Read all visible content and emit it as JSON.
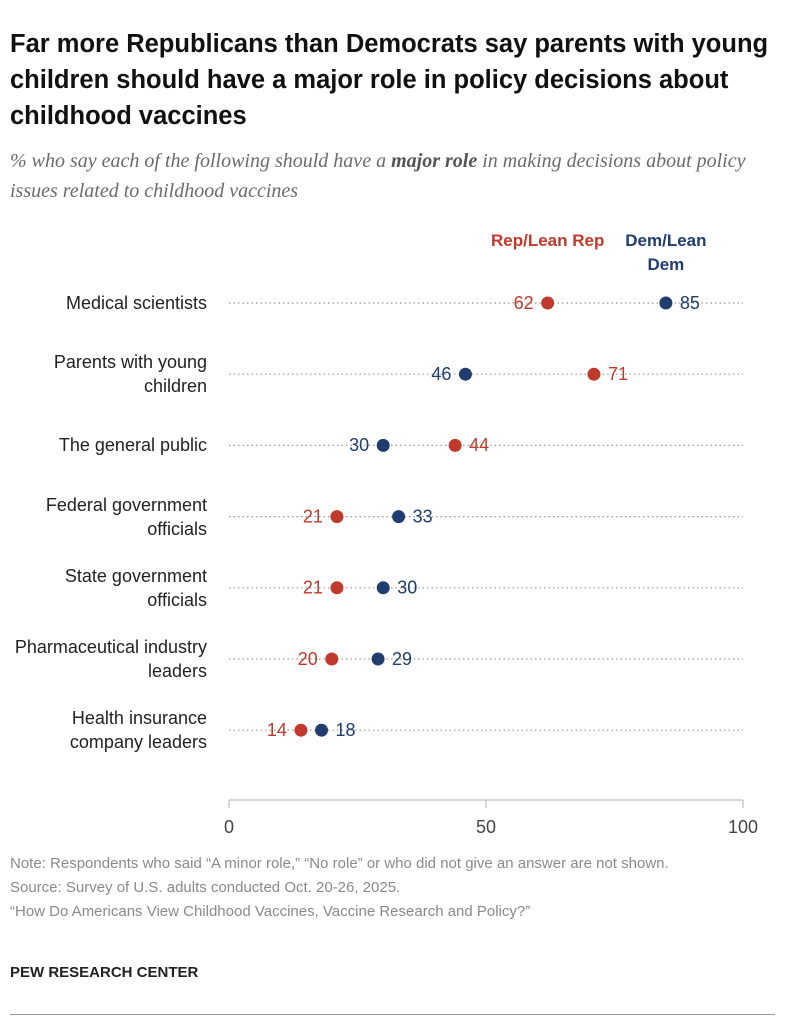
{
  "chart_data": {
    "type": "dot",
    "title": "Far more Republicans than Democrats say parents with young children should have a major role in policy decisions about childhood vaccines",
    "subtitle": [
      "% who say each of the following should have a",
      "major role",
      "in making decisions about policy issues related to childhood vaccines"
    ],
    "categories": [
      "Medical scientists",
      "Parents with young children",
      "The general public",
      "Federal government officials",
      "State government officials",
      "Pharmaceutical industry leaders",
      "Health insurance company leaders"
    ],
    "series": [
      {
        "name": "Rep/Lean Rep",
        "color": "#bf3a2b",
        "values": [
          62,
          71,
          44,
          21,
          21,
          20,
          14
        ]
      },
      {
        "name": "Dem/Lean Dem",
        "color": "#1f3d6e",
        "values": [
          85,
          46,
          30,
          33,
          30,
          29,
          18
        ]
      }
    ],
    "xlim": [
      0,
      100
    ],
    "xticks": [
      0,
      50,
      100
    ],
    "notes": [
      "Note: Respondents who said “A minor role,” “No role” or who did not give an answer are not shown.",
      "Source: Survey of U.S. adults conducted Oct. 20-26, 2025.",
      "“How Do Americans View Childhood Vaccines, Vaccine Research and Policy?”"
    ],
    "source_org": "PEW RESEARCH CENTER"
  }
}
